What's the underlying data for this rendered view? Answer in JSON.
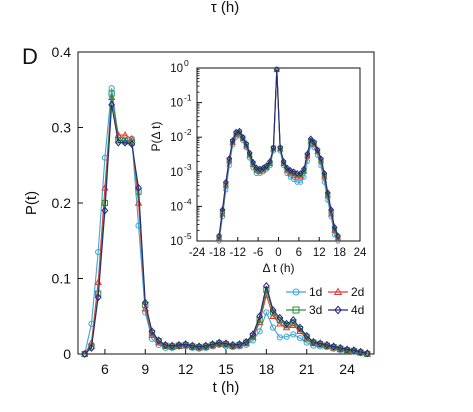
{
  "top_label": "τ (h)",
  "panel_letter": "D",
  "chart_data": [
    {
      "type": "line",
      "xlabel": "t (h)",
      "ylabel": "P(t)",
      "xlim": [
        4,
        26
      ],
      "ylim": [
        0,
        0.4
      ],
      "xticks": [
        6,
        9,
        12,
        15,
        18,
        21,
        24
      ],
      "xtick_labels": [
        "6",
        "9",
        "12",
        "15",
        "18",
        "21",
        "24"
      ],
      "yticks": [
        0,
        0.1,
        0.2,
        0.3,
        0.4
      ],
      "ytick_labels": [
        "0",
        "0.1",
        "0.2",
        "0.3",
        "0.4"
      ],
      "x": [
        4.5,
        5,
        5.5,
        6,
        6.5,
        7,
        7.5,
        8,
        8.5,
        9,
        9.5,
        10,
        10.5,
        11,
        11.5,
        12,
        12.5,
        13,
        13.5,
        14,
        14.5,
        15,
        15.5,
        16,
        16.5,
        17,
        17.5,
        18,
        18.5,
        19,
        19.5,
        20,
        20.5,
        21,
        21.5,
        22,
        22.5,
        23,
        23.5,
        24,
        24.5,
        25,
        25.5
      ],
      "series": [
        {
          "name": "1d",
          "color": "#39a7d8",
          "marker": "circle",
          "values": [
            0,
            0.04,
            0.135,
            0.26,
            0.352,
            0.287,
            0.28,
            0.285,
            0.17,
            0.055,
            0.02,
            0.012,
            0.008,
            0.008,
            0.01,
            0.01,
            0.008,
            0.007,
            0.008,
            0.01,
            0.012,
            0.01,
            0.009,
            0.01,
            0.012,
            0.018,
            0.03,
            0.055,
            0.035,
            0.022,
            0.023,
            0.026,
            0.021,
            0.015,
            0.011,
            0.01,
            0.009,
            0.007,
            0.005,
            0.004,
            0.003,
            0.001,
            0
          ]
        },
        {
          "name": "2d",
          "color": "#e03a3a",
          "marker": "triangle",
          "values": [
            0,
            0.015,
            0.095,
            0.22,
            0.34,
            0.29,
            0.29,
            0.285,
            0.2,
            0.06,
            0.025,
            0.015,
            0.01,
            0.009,
            0.01,
            0.011,
            0.009,
            0.008,
            0.009,
            0.011,
            0.013,
            0.012,
            0.01,
            0.011,
            0.014,
            0.022,
            0.042,
            0.078,
            0.05,
            0.04,
            0.035,
            0.038,
            0.03,
            0.02,
            0.014,
            0.012,
            0.01,
            0.008,
            0.006,
            0.005,
            0.004,
            0.002,
            0
          ]
        },
        {
          "name": "3d",
          "color": "#2f8f3a",
          "marker": "square",
          "values": [
            0,
            0.01,
            0.08,
            0.2,
            0.345,
            0.283,
            0.282,
            0.28,
            0.215,
            0.065,
            0.028,
            0.017,
            0.011,
            0.01,
            0.011,
            0.012,
            0.01,
            0.009,
            0.01,
            0.012,
            0.014,
            0.013,
            0.011,
            0.012,
            0.015,
            0.024,
            0.045,
            0.085,
            0.055,
            0.045,
            0.038,
            0.042,
            0.033,
            0.022,
            0.015,
            0.013,
            0.011,
            0.009,
            0.007,
            0.005,
            0.004,
            0.002,
            0
          ]
        },
        {
          "name": "4d",
          "color": "#262a7a",
          "marker": "diamond",
          "values": [
            0,
            0.008,
            0.075,
            0.19,
            0.33,
            0.28,
            0.28,
            0.278,
            0.22,
            0.068,
            0.03,
            0.018,
            0.012,
            0.011,
            0.012,
            0.013,
            0.011,
            0.01,
            0.011,
            0.013,
            0.015,
            0.014,
            0.012,
            0.013,
            0.016,
            0.026,
            0.05,
            0.09,
            0.058,
            0.048,
            0.04,
            0.045,
            0.035,
            0.024,
            0.016,
            0.014,
            0.012,
            0.01,
            0.008,
            0.006,
            0.005,
            0.003,
            0.001
          ]
        }
      ],
      "legend": [
        "1d",
        "2d",
        "3d",
        "4d"
      ],
      "legend_position": "bottom-right",
      "grid": false
    },
    {
      "type": "line",
      "role": "inset",
      "xlabel": "Δ t (h)",
      "ylabel": "P(Δ t)",
      "xlim": [
        -24,
        24
      ],
      "ylim_log10": [
        -5,
        0
      ],
      "log_y": true,
      "xticks": [
        -24,
        -18,
        -12,
        -6,
        0,
        6,
        12,
        18,
        24
      ],
      "xtick_labels": [
        "-24",
        "-18",
        "-12",
        "-6",
        "0",
        "6",
        "12",
        "18",
        "24"
      ],
      "ytick_labels": [
        "10^-5",
        "10^-4",
        "10^-3",
        "10^-2",
        "10^-1",
        "10^0"
      ],
      "x": [
        -17.5,
        -16.5,
        -15.5,
        -14.5,
        -13.5,
        -12.5,
        -11.5,
        -10.5,
        -9.5,
        -8.5,
        -7.5,
        -6.5,
        -5.5,
        -4.5,
        -3.5,
        -2.5,
        -1.5,
        -0.5,
        0.5,
        1.5,
        2.5,
        3.5,
        4.5,
        5.5,
        6.5,
        7.5,
        8.5,
        9.5,
        10.5,
        11.5,
        12.5,
        13.5,
        14.5,
        15.5,
        16.5,
        17.5
      ],
      "series": [
        {
          "name": "1d",
          "color": "#39a7d8",
          "marker": "circle",
          "values": [
            1e-05,
            5e-05,
            0.0003,
            0.0015,
            0.006,
            0.01,
            0.011,
            0.008,
            0.005,
            0.0025,
            0.0013,
            0.0009,
            0.0009,
            0.001,
            0.0012,
            0.0015,
            0.004,
            0.9,
            0.004,
            0.0015,
            0.0009,
            0.0007,
            0.0006,
            0.0005,
            0.0005,
            0.0007,
            0.002,
            0.006,
            0.005,
            0.003,
            0.0015,
            0.0005,
            0.00015,
            5e-05,
            1.5e-05,
            1e-05
          ]
        },
        {
          "name": "2d",
          "color": "#e03a3a",
          "marker": "triangle",
          "values": [
            1.2e-05,
            6e-05,
            0.0004,
            0.002,
            0.007,
            0.012,
            0.013,
            0.009,
            0.0055,
            0.003,
            0.0016,
            0.0011,
            0.001,
            0.0011,
            0.0013,
            0.0017,
            0.0045,
            0.9,
            0.0045,
            0.0017,
            0.0011,
            0.0009,
            0.0008,
            0.0007,
            0.0007,
            0.001,
            0.0028,
            0.0075,
            0.0062,
            0.0038,
            0.002,
            0.0007,
            0.0002,
            6e-05,
            2e-05,
            1.2e-05
          ]
        },
        {
          "name": "3d",
          "color": "#2f8f3a",
          "marker": "square",
          "values": [
            1.3e-05,
            7e-05,
            0.00045,
            0.0022,
            0.0075,
            0.013,
            0.014,
            0.0095,
            0.006,
            0.0032,
            0.0017,
            0.0012,
            0.0011,
            0.0012,
            0.0014,
            0.0018,
            0.0048,
            0.9,
            0.0048,
            0.0018,
            0.0012,
            0.001,
            0.0009,
            0.0008,
            0.0008,
            0.0011,
            0.003,
            0.008,
            0.0068,
            0.004,
            0.0022,
            0.0008,
            0.00022,
            7e-05,
            2.2e-05,
            1.3e-05
          ]
        },
        {
          "name": "4d",
          "color": "#262a7a",
          "marker": "diamond",
          "values": [
            1.4e-05,
            8e-05,
            0.0005,
            0.0024,
            0.008,
            0.014,
            0.015,
            0.01,
            0.0065,
            0.0035,
            0.0019,
            0.0013,
            0.0012,
            0.0013,
            0.0015,
            0.002,
            0.005,
            0.9,
            0.005,
            0.002,
            0.0013,
            0.0011,
            0.001,
            0.0009,
            0.0009,
            0.0012,
            0.0033,
            0.009,
            0.0072,
            0.0043,
            0.0024,
            0.0009,
            0.00025,
            8e-05,
            2.5e-05,
            1.4e-05
          ]
        }
      ],
      "grid": false
    }
  ]
}
